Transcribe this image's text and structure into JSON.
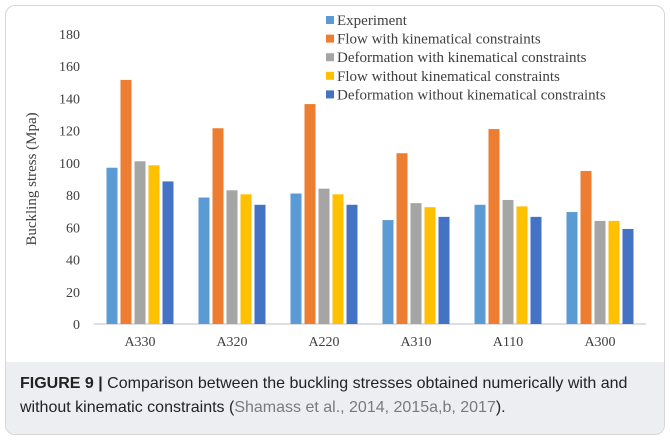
{
  "chart_data": {
    "type": "bar",
    "categories": [
      "A330",
      "A320",
      "A220",
      "A310",
      "A110",
      "A300"
    ],
    "series": [
      {
        "name": "Experiment",
        "color": "#5b9bd5",
        "values": [
          97,
          78.5,
          81,
          64.5,
          74,
          69.5
        ]
      },
      {
        "name": "Flow with kinematical constraints",
        "color": "#ed7d31",
        "values": [
          151.5,
          121.5,
          136.5,
          106,
          121,
          95
        ]
      },
      {
        "name": "Deformation with kinematical constraints",
        "color": "#a5a5a5",
        "values": [
          101,
          83,
          84,
          75,
          77,
          64
        ]
      },
      {
        "name": "Flow without kinematical constraints",
        "color": "#ffc000",
        "values": [
          98.5,
          80.5,
          80.5,
          72.5,
          73,
          64
        ]
      },
      {
        "name": "Deformation without kinematical constraints",
        "color": "#4472c4",
        "values": [
          88.5,
          74,
          74,
          66.5,
          66.5,
          59
        ]
      }
    ],
    "ylabel": "Buckling stress (Mpa)",
    "xlabel": "",
    "ylim": [
      0,
      180
    ],
    "yticks": [
      0,
      20,
      40,
      60,
      80,
      100,
      120,
      140,
      160,
      180
    ],
    "grid": false,
    "legend_position": "top-right"
  },
  "caption": {
    "label": "FIGURE 9 |",
    "text_before": " Comparison between the buckling stresses obtained numerically with and without kinematic constraints (",
    "citation": "Shamass et al., 2014, 2015a,b, 2017",
    "text_after": ")."
  }
}
